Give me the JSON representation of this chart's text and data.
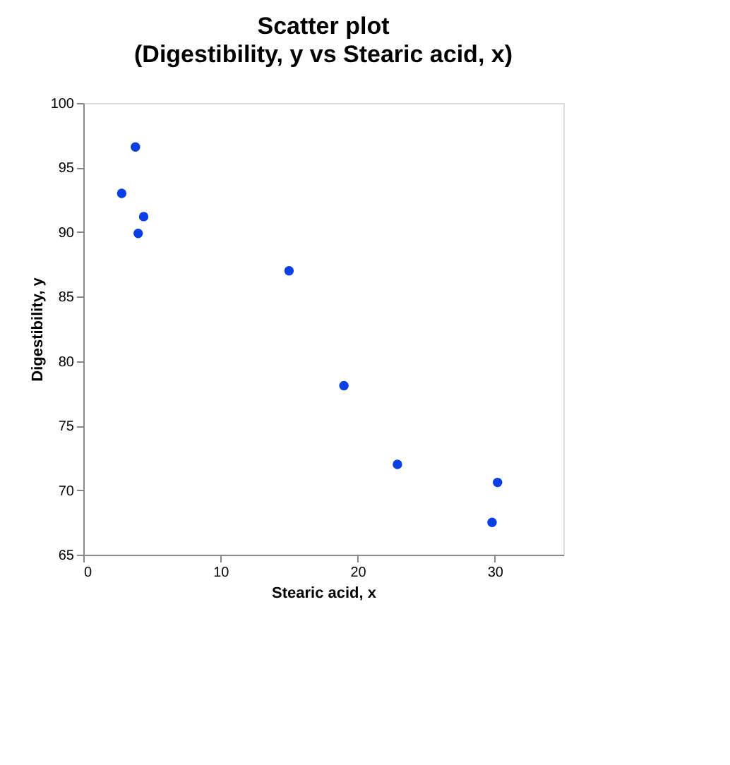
{
  "chart_data": {
    "type": "scatter",
    "title": "Scatter plot",
    "subtitle": "(Digestibility, y vs Stearic acid, x)",
    "xlabel": "Stearic acid, x",
    "ylabel": "Digestibility, y",
    "x": [
      2.8,
      3.8,
      4.4,
      4.0,
      15.0,
      19.0,
      22.9,
      30.2,
      29.8
    ],
    "series": [
      {
        "color": "#0a3fe6",
        "values": [
          93.0,
          96.6,
          91.2,
          89.9,
          87.0,
          78.1,
          72.0,
          70.6,
          67.5
        ]
      }
    ],
    "xlim": [
      0,
      35
    ],
    "xticks": [
      0,
      10,
      20,
      30
    ],
    "ylim": [
      65,
      100
    ],
    "yticks": [
      65,
      70,
      75,
      80,
      85,
      90,
      95,
      100
    ],
    "grid": false,
    "legend": false,
    "marker": "circle"
  }
}
